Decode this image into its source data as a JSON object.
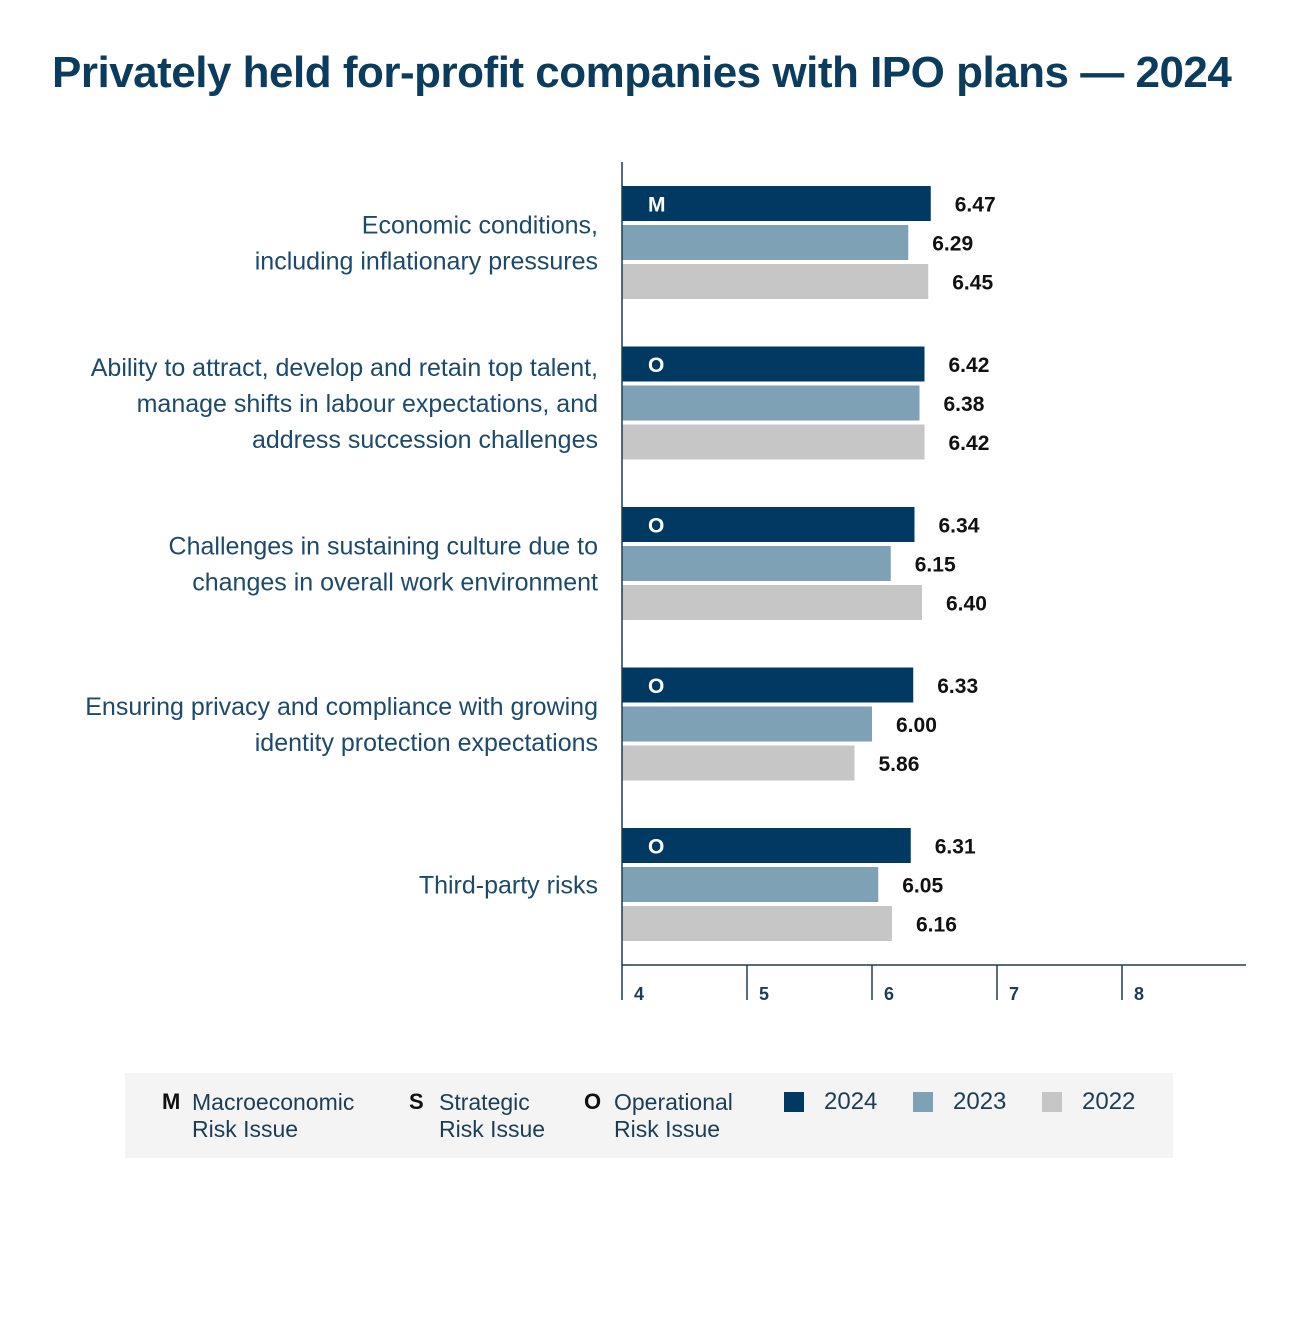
{
  "title": "Privately held for-profit companies with IPO plans — 2024",
  "colors": {
    "2024": "#003a63",
    "2023": "#7ea1b6",
    "2022": "#c6c6c6",
    "category_text": "#1c4a6b",
    "axis": "#1c3d55"
  },
  "chart_data": {
    "type": "bar",
    "orientation": "horizontal",
    "categories": [
      [
        "Economic conditions,",
        "including inflationary pressures"
      ],
      [
        "Ability to attract, develop and retain top talent,",
        "manage shifts in labour expectations, and",
        "address succession challenges"
      ],
      [
        "Challenges in sustaining culture due to",
        "changes in overall work environment"
      ],
      [
        "Ensuring privacy and compliance with growing",
        "identity protection expectations"
      ],
      [
        "Third-party risks"
      ]
    ],
    "risk_codes": [
      "M",
      "O",
      "O",
      "O",
      "O"
    ],
    "series": [
      {
        "name": "2024",
        "values": [
          6.47,
          6.42,
          6.34,
          6.33,
          6.31
        ],
        "labels": [
          "6.47",
          "6.42",
          "6.34",
          "6.33",
          "6.31"
        ]
      },
      {
        "name": "2023",
        "values": [
          6.29,
          6.38,
          6.15,
          6.0,
          6.05
        ],
        "labels": [
          "6.29",
          "6.38",
          "6.15",
          "6.00",
          "6.05"
        ]
      },
      {
        "name": "2022",
        "values": [
          6.45,
          6.42,
          6.4,
          5.86,
          6.16
        ],
        "labels": [
          "6.45",
          "6.42",
          "6.40",
          "5.86",
          "6.16"
        ]
      }
    ],
    "x_ticks": [
      "4",
      "5",
      "6",
      "7",
      "8"
    ],
    "xlim": [
      4,
      9
    ],
    "grid": false,
    "legend_position": "bottom"
  },
  "legend": {
    "risk_types": [
      {
        "code": "M",
        "line1": "Macroeconomic",
        "line2": "Risk Issue"
      },
      {
        "code": "S",
        "line1": "Strategic",
        "line2": "Risk Issue"
      },
      {
        "code": "O",
        "line1": "Operational",
        "line2": "Risk Issue"
      }
    ],
    "years": [
      "2024",
      "2023",
      "2022"
    ]
  }
}
